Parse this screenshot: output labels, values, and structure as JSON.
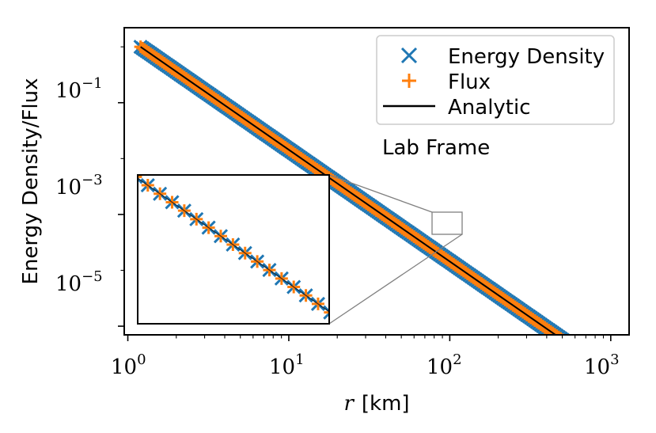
{
  "chart_data": {
    "type": "line",
    "title": "",
    "xlabel_var": "r",
    "xlabel_unit": "[km]",
    "ylabel": "Energy Density/Flux",
    "xscale": "log",
    "yscale": "log",
    "xlim": [
      0.95,
      1300
    ],
    "ylim": [
      7e-06,
      2.2
    ],
    "xticks": [
      {
        "base": "10",
        "exp": "0",
        "value": 1
      },
      {
        "base": "10",
        "exp": "1",
        "value": 10
      },
      {
        "base": "10",
        "exp": "2",
        "value": 100
      },
      {
        "base": "10",
        "exp": "3",
        "value": 1000
      }
    ],
    "yticks": [
      {
        "base": "10",
        "exp": "−1",
        "value": 0.1
      },
      {
        "base": "10",
        "exp": "−3",
        "value": 0.001
      },
      {
        "base": "10",
        "exp": "−5",
        "value": 1e-05
      }
    ],
    "series": [
      {
        "name": "Energy Density",
        "marker": "x",
        "color": "#1f77b4",
        "x_range": [
          1.2,
          1050
        ],
        "points": 240,
        "law": "1/r^2",
        "y_at_1": 1.44
      },
      {
        "name": "Flux",
        "marker": "+",
        "color": "#ff7f0e",
        "x_range": [
          1.2,
          1050
        ],
        "points": 240,
        "law": "1/r^2",
        "y_at_1": 1.44
      },
      {
        "name": "Analytic",
        "marker": "line",
        "color": "#000000",
        "x_range": [
          1.2,
          1050
        ],
        "law": "1/r^2",
        "y_at_1": 1.44
      }
    ],
    "legend_position": "top-right",
    "annotation": "Lab Frame",
    "inset": {
      "zoom_xlim": [
        80,
        125
      ],
      "zoom_ylim": [
        8.5e-05,
        0.00023
      ],
      "location": "lower-left"
    }
  },
  "colors": {
    "energy": "#1f77b4",
    "flux": "#ff7f0e",
    "analytic": "#000000",
    "zoom_box": "#808080"
  }
}
